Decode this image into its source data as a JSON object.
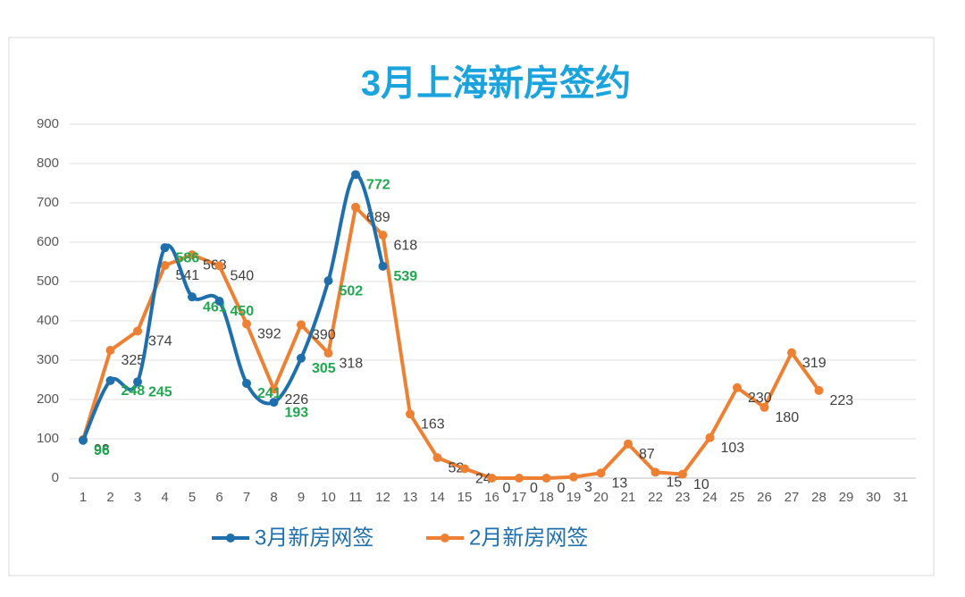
{
  "chart_data": {
    "type": "line",
    "title": "3月上海新房签约",
    "categories": [
      1,
      2,
      3,
      4,
      5,
      6,
      7,
      8,
      9,
      10,
      11,
      12,
      13,
      14,
      15,
      16,
      17,
      18,
      19,
      20,
      21,
      22,
      23,
      24,
      25,
      26,
      27,
      28,
      29,
      30,
      31
    ],
    "series": [
      {
        "name": "3月新房网签",
        "color": "#1f6fad",
        "smooth": true,
        "label_color": "#1fa84f",
        "values": [
          96,
          248,
          245,
          586,
          461,
          450,
          241,
          193,
          305,
          502,
          772,
          539,
          null,
          null,
          null,
          null,
          null,
          null,
          null,
          null,
          null,
          null,
          null,
          null,
          null,
          null,
          null,
          null,
          null,
          null,
          null
        ]
      },
      {
        "name": "2月新房网签",
        "color": "#ed8032",
        "smooth": false,
        "label_color": "#404040",
        "values": [
          98,
          325,
          374,
          541,
          568,
          540,
          392,
          226,
          390,
          318,
          689,
          618,
          163,
          52,
          24,
          0,
          0,
          0,
          3,
          13,
          87,
          15,
          10,
          103,
          230,
          180,
          319,
          223,
          null,
          null,
          null
        ]
      }
    ],
    "ylim": [
      0,
      900
    ],
    "yticks": [
      0,
      100,
      200,
      300,
      400,
      500,
      600,
      700,
      800,
      900
    ],
    "grid": true,
    "legend": "bottom"
  }
}
